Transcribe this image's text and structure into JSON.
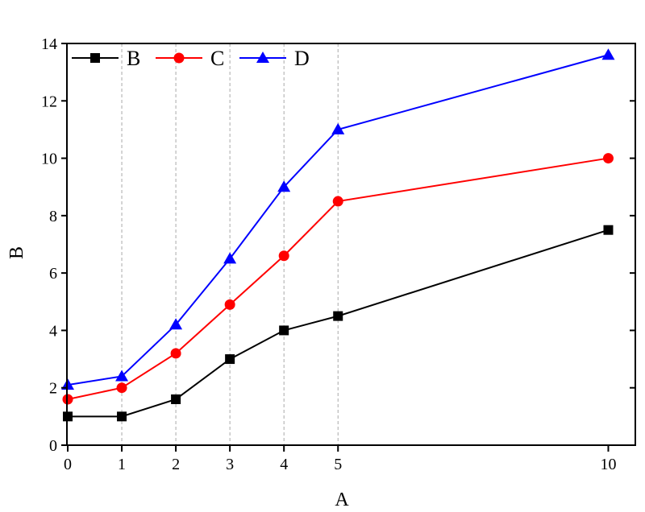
{
  "chart_data": {
    "type": "line",
    "title": "",
    "xlabel": "A",
    "ylabel": "B",
    "xlim": [
      0,
      10.5
    ],
    "ylim": [
      0,
      14
    ],
    "x": [
      0,
      1,
      2,
      3,
      4,
      5,
      10
    ],
    "xticks": [
      "0",
      "1",
      "2",
      "3",
      "4",
      "5",
      "10"
    ],
    "yticks": [
      "0",
      "2",
      "4",
      "6",
      "8",
      "10",
      "12",
      "14"
    ],
    "grid": "vertical dashed at x=1..5",
    "legend_position": "top-left",
    "series": [
      {
        "name": "B",
        "color": "#000000",
        "marker": "square",
        "values": [
          1,
          1,
          1.6,
          3,
          4,
          4.5,
          7.5
        ]
      },
      {
        "name": "C",
        "color": "#ff0000",
        "marker": "circle",
        "values": [
          1.6,
          2,
          3.2,
          4.9,
          6.6,
          8.5,
          10
        ]
      },
      {
        "name": "D",
        "color": "#0000ff",
        "marker": "triangle",
        "values": [
          2.1,
          2.4,
          4.2,
          6.5,
          9,
          11,
          13.6
        ]
      }
    ]
  }
}
